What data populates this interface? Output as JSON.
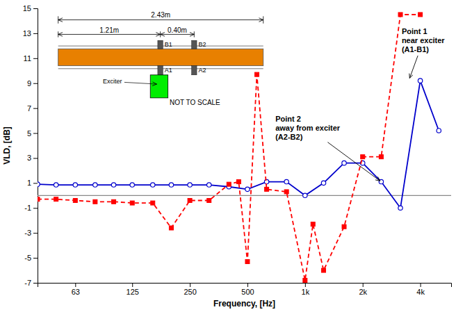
{
  "chart_data": {
    "type": "line",
    "xlabel": "Frequency, [Hz]",
    "ylabel": "VLD, [dB]",
    "log": "x",
    "grid": false,
    "xlim": [
      40,
      5800
    ],
    "ylim": [
      -7,
      15
    ],
    "xticks": [
      63,
      125,
      250,
      500,
      {
        "value": 1000,
        "label": "1k"
      },
      {
        "value": 2000,
        "label": "2k"
      },
      {
        "value": 4000,
        "label": "4k"
      }
    ],
    "yticks": [
      -7,
      -5,
      -3,
      -1,
      1,
      3,
      5,
      7,
      9,
      11,
      13,
      15
    ],
    "series": [
      {
        "color": "#0000cc",
        "marker": "circle",
        "line_style": "solid",
        "x": [
          40,
          50,
          63,
          80,
          100,
          125,
          160,
          200,
          250,
          315,
          400,
          500,
          630,
          800,
          1000,
          1250,
          1600,
          2000,
          2500,
          3150,
          4000,
          5000
        ],
        "values": [
          0.9,
          0.85,
          0.85,
          0.85,
          0.85,
          0.85,
          0.85,
          0.85,
          0.85,
          0.85,
          0.7,
          0.5,
          1.1,
          1.1,
          0.0,
          1.0,
          2.6,
          2.6,
          1.1,
          -1.0,
          9.2,
          5.2
        ]
      },
      {
        "color": "#ff0000",
        "marker": "square",
        "line_style": "dashed",
        "x": [
          40,
          50,
          63,
          80,
          100,
          125,
          160,
          200,
          250,
          315,
          400,
          450,
          500,
          560,
          630,
          800,
          1000,
          1100,
          1250,
          1600,
          2000,
          2500,
          3150,
          4000
        ],
        "values": [
          -0.3,
          -0.3,
          -0.4,
          -0.5,
          -0.5,
          -0.6,
          -0.6,
          -2.6,
          -0.4,
          -0.4,
          0.9,
          1.1,
          -5.3,
          9.7,
          0.5,
          0.3,
          -6.8,
          -2.3,
          -6.0,
          -2.5,
          3.1,
          3.1,
          14.5,
          14.5
        ]
      }
    ],
    "reference_line": {
      "value": 0,
      "color": "#888888"
    },
    "annotations": [
      {
        "text": "Point 1\nnear exciter\n(A1-B1)",
        "x": 3500,
        "y": 9.3,
        "text_x": 3200,
        "text_y": 13.5
      },
      {
        "text": "Point 2\naway from exciter\n(A2-B2)",
        "x": 2500,
        "y": 1.1,
        "text_x": 700,
        "text_y": 6.5
      },
      {
        "text": "2.43m"
      },
      {
        "text": "1.21m"
      },
      {
        "text": "0.40m"
      },
      {
        "text": "B1"
      },
      {
        "text": "B2"
      },
      {
        "text": "A1"
      },
      {
        "text": "A2"
      },
      {
        "text": "Exciter"
      },
      {
        "text": "NOT TO SCALE"
      }
    ]
  }
}
